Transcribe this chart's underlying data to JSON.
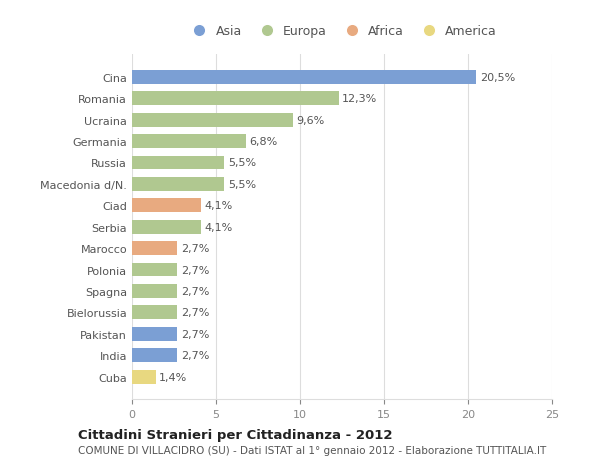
{
  "categories": [
    "Cina",
    "Romania",
    "Ucraina",
    "Germania",
    "Russia",
    "Macedonia d/N.",
    "Ciad",
    "Serbia",
    "Marocco",
    "Polonia",
    "Spagna",
    "Bielorussia",
    "Pakistan",
    "India",
    "Cuba"
  ],
  "values": [
    20.5,
    12.3,
    9.6,
    6.8,
    5.5,
    5.5,
    4.1,
    4.1,
    2.7,
    2.7,
    2.7,
    2.7,
    2.7,
    2.7,
    1.4
  ],
  "labels": [
    "20,5%",
    "12,3%",
    "9,6%",
    "6,8%",
    "5,5%",
    "5,5%",
    "4,1%",
    "4,1%",
    "2,7%",
    "2,7%",
    "2,7%",
    "2,7%",
    "2,7%",
    "2,7%",
    "1,4%"
  ],
  "colors": [
    "#7b9fd4",
    "#b0c890",
    "#b0c890",
    "#b0c890",
    "#b0c890",
    "#b0c890",
    "#e8aa80",
    "#b0c890",
    "#e8aa80",
    "#b0c890",
    "#b0c890",
    "#b0c890",
    "#7b9fd4",
    "#7b9fd4",
    "#e8d880"
  ],
  "legend_labels": [
    "Asia",
    "Europa",
    "Africa",
    "America"
  ],
  "legend_colors": [
    "#7b9fd4",
    "#b0c890",
    "#e8aa80",
    "#e8d880"
  ],
  "title": "Cittadini Stranieri per Cittadinanza - 2012",
  "subtitle": "COMUNE DI VILLACIDRO (SU) - Dati ISTAT al 1° gennaio 2012 - Elaborazione TUTTITALIA.IT",
  "xlim": [
    0,
    25
  ],
  "xticks": [
    0,
    5,
    10,
    15,
    20,
    25
  ],
  "background_color": "#ffffff",
  "grid_color": "#dddddd"
}
